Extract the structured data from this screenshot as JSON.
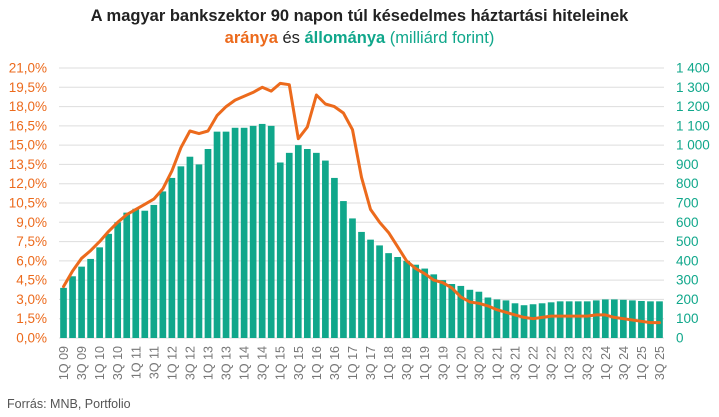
{
  "header": {
    "title_line1": "A magyar bankszektor 90 napon túl késedelmes háztartási hiteleinek",
    "title_part_rate": "aránya",
    "title_part_and": " és ",
    "title_part_stock": "állománya",
    "title_part_unit": " (milliárd forint)"
  },
  "footer": {
    "source": "Forrás: MNB, Portfolio"
  },
  "colors": {
    "rate_line": "#ec6a1c",
    "stock_bars": "#10a78b",
    "grid": "#dddddd",
    "text": "#222222",
    "axis_label": "#777777"
  },
  "chart_data": {
    "type": "bar+line",
    "categories": [
      "1Q 09",
      "2Q 09",
      "3Q 09",
      "4Q 09",
      "1Q 10",
      "2Q 10",
      "3Q 10",
      "4Q 10",
      "1Q 11",
      "2Q 11",
      "3Q 11",
      "4Q 11",
      "1Q 12",
      "2Q 12",
      "3Q 12",
      "4Q 12",
      "1Q 13",
      "2Q 13",
      "3Q 13",
      "4Q 13",
      "1Q 14",
      "2Q 14",
      "3Q 14",
      "4Q 14",
      "1Q 15",
      "2Q 15",
      "3Q 15",
      "4Q 15",
      "1Q 16",
      "2Q 16",
      "3Q 16",
      "4Q 16",
      "1Q 17",
      "2Q 17",
      "3Q 17",
      "4Q 17",
      "1Q 18",
      "2Q 18",
      "3Q 18",
      "4Q 18",
      "1Q 19",
      "2Q 19",
      "3Q 19",
      "4Q 19",
      "1Q 20",
      "2Q 20",
      "3Q 20",
      "4Q 20",
      "1Q 21",
      "2Q 21",
      "3Q 21",
      "4Q 21",
      "1Q 22",
      "2Q 22",
      "3Q 22",
      "4Q 22",
      "1Q 23",
      "2Q 23",
      "3Q 23",
      "4Q 23",
      "1Q 24",
      "2Q 24",
      "3Q 24",
      "4Q 24",
      "1Q 25",
      "2Q 25",
      "3Q 25"
    ],
    "x_tick_labels": [
      "1Q 09",
      "3Q 09",
      "1Q 10",
      "3Q 10",
      "1Q 11",
      "3Q 11",
      "1Q 12",
      "3Q 12",
      "1Q 13",
      "3Q 13",
      "1Q 14",
      "3Q 14",
      "1Q 15",
      "3Q 15",
      "1Q 16",
      "3Q 16",
      "1Q 17",
      "3Q 17",
      "1Q 18",
      "3Q 18",
      "1Q 19",
      "3Q 19",
      "1Q 20",
      "3Q 20",
      "1Q 21",
      "3Q 21",
      "1Q 22",
      "3Q 22",
      "1Q 23",
      "3Q 23",
      "1Q 24",
      "3Q 24",
      "1Q 25",
      "3Q 25"
    ],
    "series": [
      {
        "name": "állománya",
        "kind": "bar",
        "axis": "right",
        "values": [
          260,
          320,
          370,
          410,
          470,
          540,
          600,
          650,
          670,
          660,
          690,
          760,
          830,
          890,
          940,
          900,
          980,
          1070,
          1070,
          1090,
          1090,
          1100,
          1110,
          1100,
          910,
          960,
          1000,
          980,
          960,
          920,
          830,
          710,
          620,
          550,
          510,
          480,
          440,
          420,
          400,
          380,
          360,
          330,
          300,
          280,
          270,
          250,
          240,
          210,
          200,
          195,
          180,
          170,
          175,
          180,
          185,
          190,
          190,
          190,
          190,
          195,
          200,
          200,
          198,
          195,
          192,
          190,
          190
        ]
      },
      {
        "name": "aránya",
        "kind": "line",
        "axis": "left",
        "values": [
          4.0,
          5.2,
          6.2,
          6.8,
          7.5,
          8.3,
          9.0,
          9.6,
          10.0,
          10.4,
          10.8,
          11.6,
          13.0,
          14.8,
          16.1,
          15.9,
          16.1,
          17.3,
          18.0,
          18.5,
          18.8,
          19.1,
          19.5,
          19.2,
          19.8,
          19.7,
          15.5,
          16.4,
          18.9,
          18.2,
          18.0,
          17.5,
          16.2,
          12.5,
          10.0,
          9.0,
          8.2,
          7.1,
          6.0,
          5.4,
          5.0,
          4.5,
          4.3,
          3.9,
          3.2,
          2.8,
          2.7,
          2.5,
          2.2,
          2.0,
          1.8,
          1.6,
          1.5,
          1.6,
          1.7,
          1.7,
          1.7,
          1.7,
          1.7,
          1.8,
          1.8,
          1.6,
          1.5,
          1.4,
          1.3,
          1.2,
          1.2
        ]
      }
    ],
    "y_left": {
      "ticks": [
        "0,0%",
        "1,5%",
        "3,0%",
        "4,5%",
        "6,0%",
        "7,5%",
        "9,0%",
        "10,5%",
        "12,0%",
        "13,5%",
        "15,0%",
        "16,5%",
        "18,0%",
        "19,5%",
        "21,0%"
      ],
      "ylim": [
        0,
        21
      ]
    },
    "y_right": {
      "ticks": [
        "0",
        "100",
        "200",
        "300",
        "400",
        "500",
        "600",
        "700",
        "800",
        "900",
        "1 000",
        "1 100",
        "1 200",
        "1 300",
        "1 400"
      ],
      "ylim": [
        0,
        1400
      ]
    },
    "grid": true,
    "legend": "in title"
  }
}
